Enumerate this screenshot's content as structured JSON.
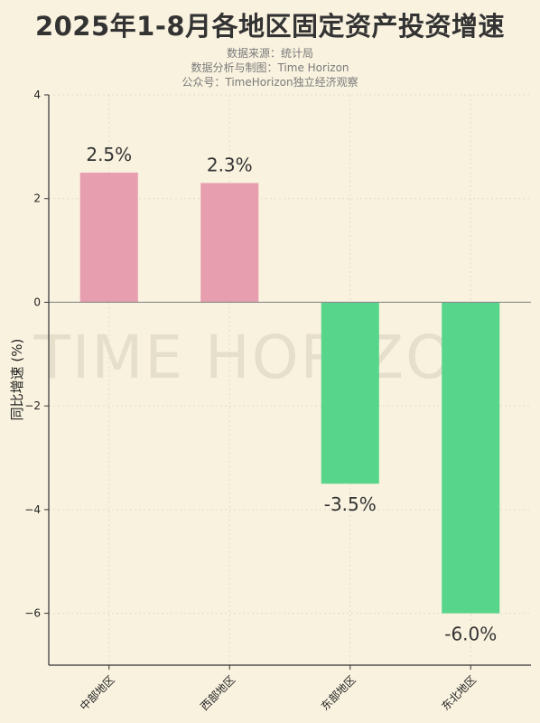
{
  "title": "2025年1-8月各地区固定资产投资增速",
  "subtitles": [
    "数据来源：统计局",
    "数据分析与制图：Time Horizon",
    "公众号：TimeHorizon独立经济观察"
  ],
  "watermark": "TIME HORIZON",
  "colors": {
    "background": "#f9f2df",
    "positive": "#e79eae",
    "negative": "#57d68b",
    "zero_line": "#8a8a8a",
    "grid": "#e4dccb"
  },
  "chart_data": {
    "type": "bar",
    "categories": [
      "中部地区",
      "西部地区",
      "东部地区",
      "东北地区"
    ],
    "values": [
      2.5,
      2.3,
      -3.5,
      -6.0
    ],
    "data_labels": [
      "2.5%",
      "2.3%",
      "-3.5%",
      "-6.0%"
    ],
    "title": "2025年1-8月各地区固定资产投资增速",
    "xlabel": "",
    "ylabel": "同比增速 (%)",
    "ylim": [
      -7,
      4
    ],
    "yticks": [
      4,
      2,
      0,
      -2,
      -4,
      -6
    ],
    "ytick_labels": [
      "4",
      "2",
      "0",
      "−2",
      "−4",
      "−6"
    ],
    "grid": true
  }
}
